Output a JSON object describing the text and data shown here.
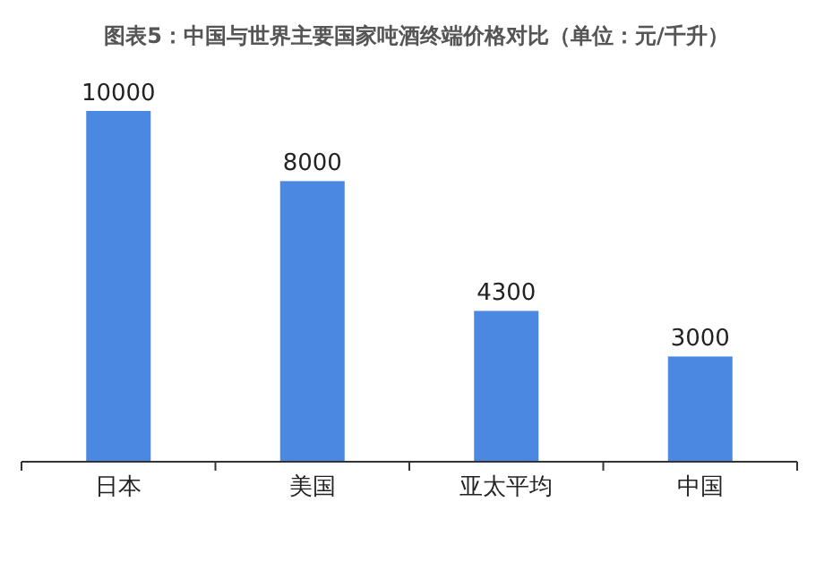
{
  "chart_data": {
    "type": "bar",
    "title": "图表5：中国与世界主要国家吨酒终端价格对比（单位：元/千升）",
    "categories": [
      "日本",
      "美国",
      "亚太平均",
      "中国"
    ],
    "values": [
      10000,
      8000,
      4300,
      3000
    ],
    "color": "#4a88e2",
    "data_labels": true,
    "grid": false
  }
}
